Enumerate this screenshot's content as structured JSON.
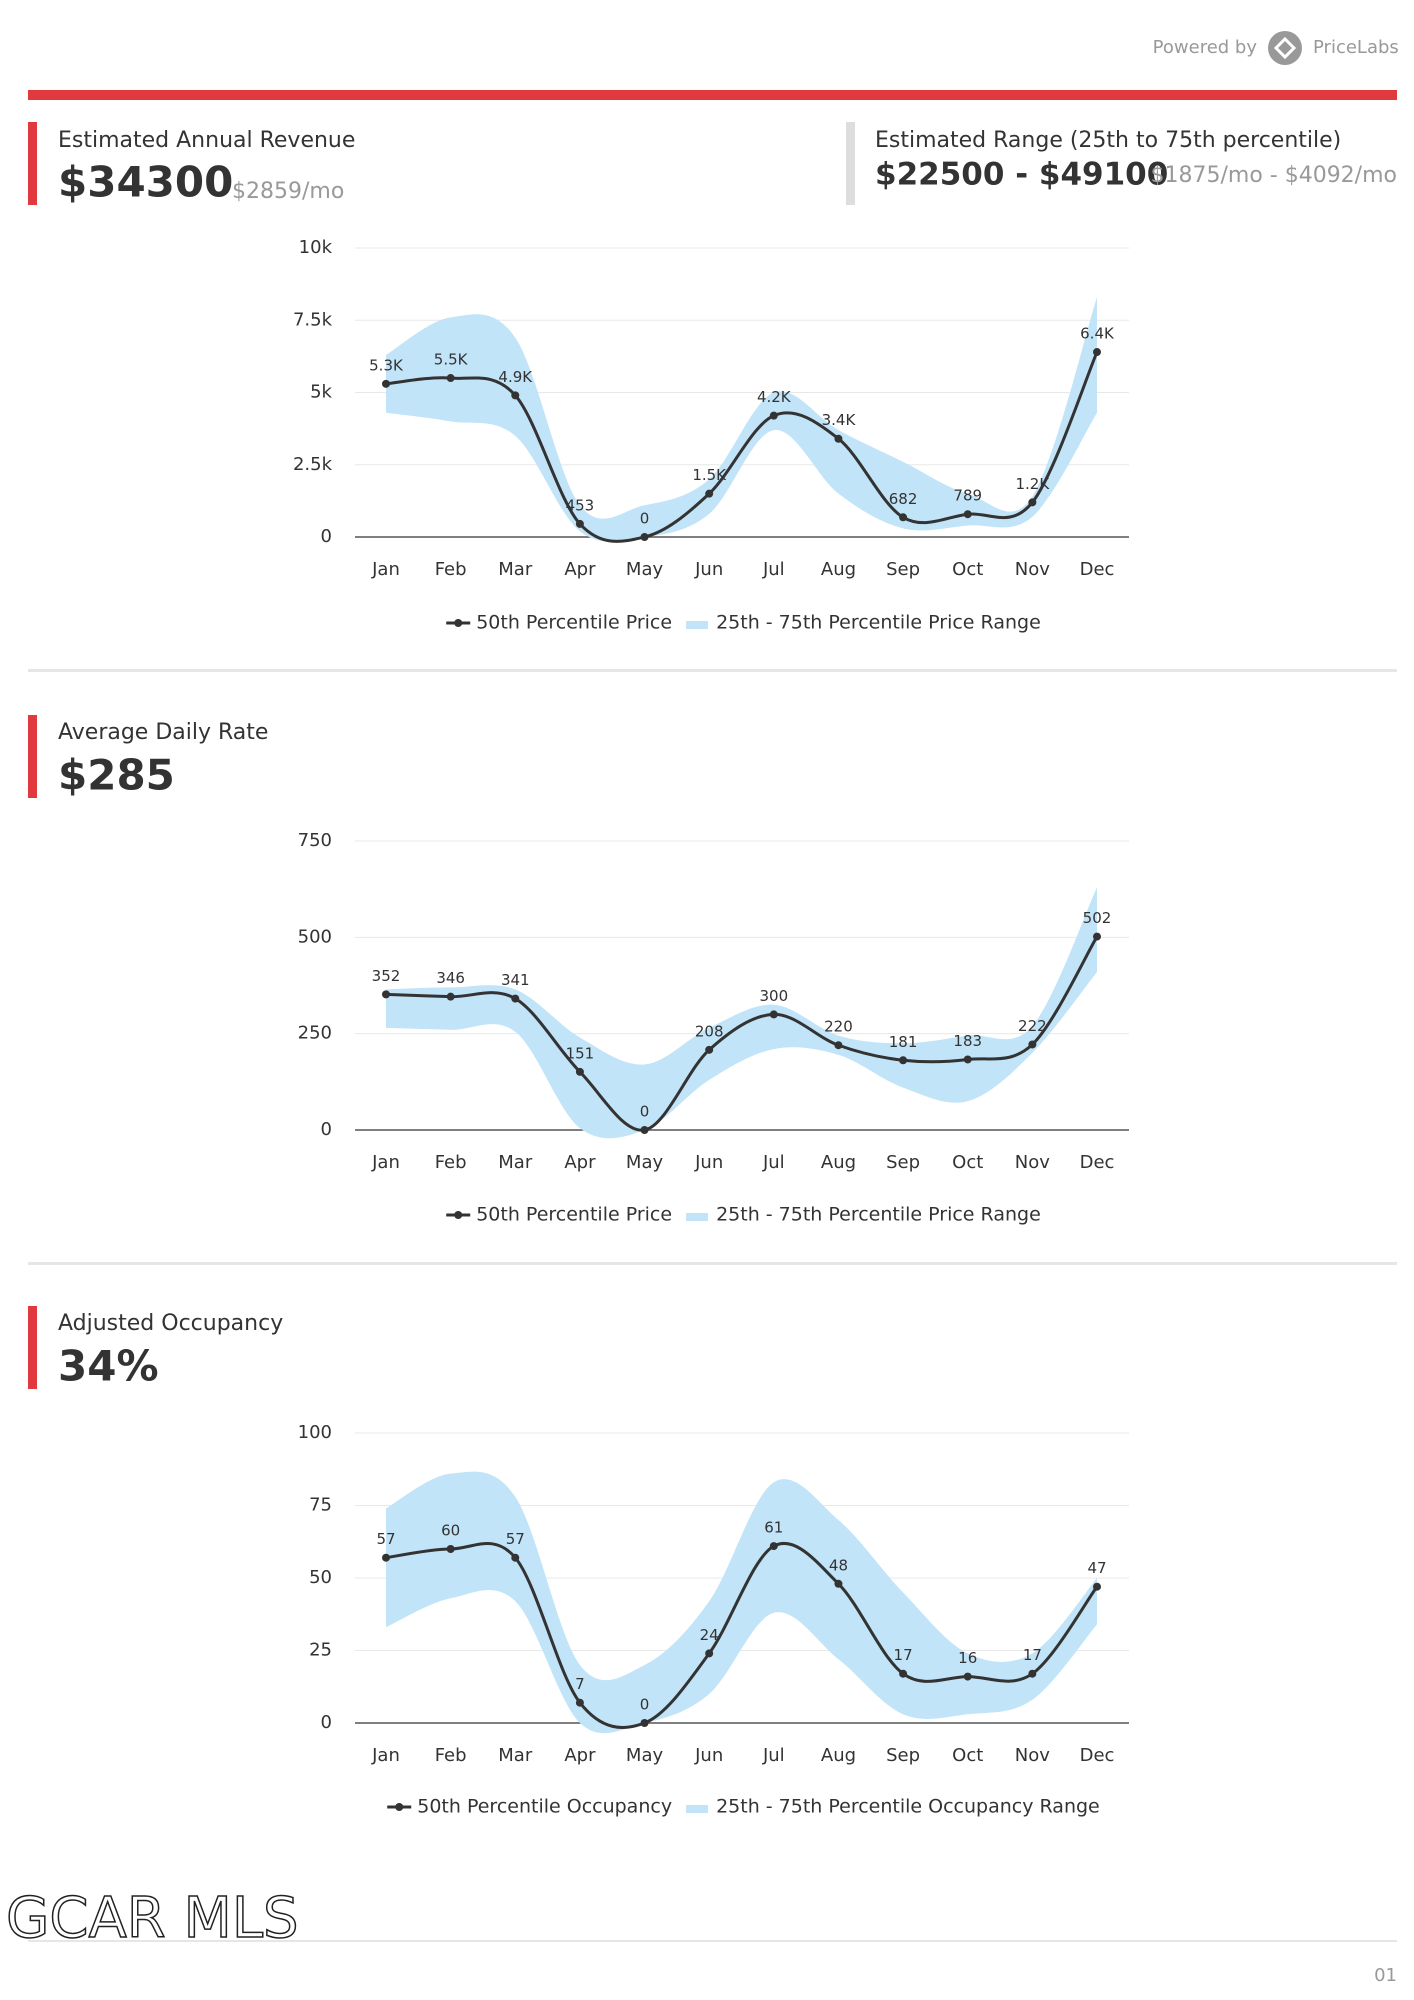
{
  "header": {
    "powered_by": "Powered by",
    "brand": "PriceLabs"
  },
  "revenue": {
    "label": "Estimated Annual Revenue",
    "value": "$34300",
    "monthly": "$2859/mo"
  },
  "range": {
    "label": "Estimated Range (25th to 75th percentile)",
    "value": "$22500 - $49100",
    "monthly": "$1875/mo - $4092/mo"
  },
  "adr": {
    "label": "Average Daily Rate",
    "value": "$285"
  },
  "occupancy": {
    "label": "Adjusted Occupancy",
    "value": "34%"
  },
  "footer": {
    "logo": "GCAR MLS",
    "page": "01"
  },
  "chart_data": [
    {
      "type": "line",
      "categories": [
        "Jan",
        "Feb",
        "Mar",
        "Apr",
        "May",
        "Jun",
        "Jul",
        "Aug",
        "Sep",
        "Oct",
        "Nov",
        "Dec"
      ],
      "ylim": [
        0,
        10000
      ],
      "yticks": [
        0,
        {
          "value": 2500,
          "label": "2.5k"
        },
        {
          "value": 5000,
          "label": "5k"
        },
        {
          "value": 7500,
          "label": "7.5k"
        },
        {
          "value": 10000,
          "label": "10k"
        }
      ],
      "grid": true,
      "series": [
        {
          "name": "50th Percentile Price",
          "color": "#333333",
          "values": [
            5300,
            5500,
            4900,
            453,
            0,
            1500,
            4200,
            3400,
            682,
            789,
            1200,
            6400
          ],
          "value_labels": [
            "5.3K",
            "5.5K",
            "4.9K",
            "453",
            "0",
            "1.5K",
            "4.2K",
            "3.4K",
            "682",
            "789",
            "1.2K",
            "6.4K"
          ]
        },
        {
          "name": "25th - 75th Percentile Price Range",
          "color": "#c2e4f8",
          "type": "range",
          "low": [
            4300,
            4000,
            3500,
            200,
            0,
            800,
            3700,
            1500,
            300,
            400,
            700,
            4300
          ],
          "high": [
            6300,
            7600,
            6900,
            1100,
            1100,
            2000,
            5000,
            3700,
            2600,
            1500,
            1400,
            8300
          ]
        }
      ]
    },
    {
      "type": "line",
      "categories": [
        "Jan",
        "Feb",
        "Mar",
        "Apr",
        "May",
        "Jun",
        "Jul",
        "Aug",
        "Sep",
        "Oct",
        "Nov",
        "Dec"
      ],
      "ylim": [
        0,
        750
      ],
      "yticks": [
        0,
        250,
        500,
        750
      ],
      "grid": true,
      "series": [
        {
          "name": "50th Percentile Price",
          "color": "#333333",
          "values": [
            352,
            346,
            341,
            151,
            0,
            208,
            300,
            220,
            181,
            183,
            222,
            502
          ]
        },
        {
          "name": "25th - 75th Percentile Price Range",
          "color": "#c2e4f8",
          "type": "range",
          "low": [
            265,
            260,
            255,
            5,
            0,
            130,
            210,
            195,
            110,
            75,
            200,
            410
          ],
          "high": [
            365,
            370,
            365,
            240,
            170,
            265,
            325,
            245,
            225,
            245,
            270,
            630
          ]
        }
      ]
    },
    {
      "type": "line",
      "categories": [
        "Jan",
        "Feb",
        "Mar",
        "Apr",
        "May",
        "Jun",
        "Jul",
        "Aug",
        "Sep",
        "Oct",
        "Nov",
        "Dec"
      ],
      "ylim": [
        0,
        100
      ],
      "yticks": [
        0,
        25,
        50,
        75,
        100
      ],
      "grid": true,
      "series": [
        {
          "name": "50th Percentile Occupancy",
          "color": "#333333",
          "values": [
            57,
            60,
            57,
            7,
            0,
            24,
            61,
            48,
            17,
            16,
            17,
            47
          ]
        },
        {
          "name": "25th - 75th Percentile Occupancy Range",
          "color": "#c2e4f8",
          "type": "range",
          "low": [
            33,
            43,
            42,
            0,
            0,
            10,
            38,
            22,
            3,
            3,
            8,
            34
          ],
          "high": [
            74,
            86,
            78,
            20,
            20,
            42,
            83,
            70,
            45,
            24,
            24,
            50
          ]
        }
      ]
    }
  ]
}
